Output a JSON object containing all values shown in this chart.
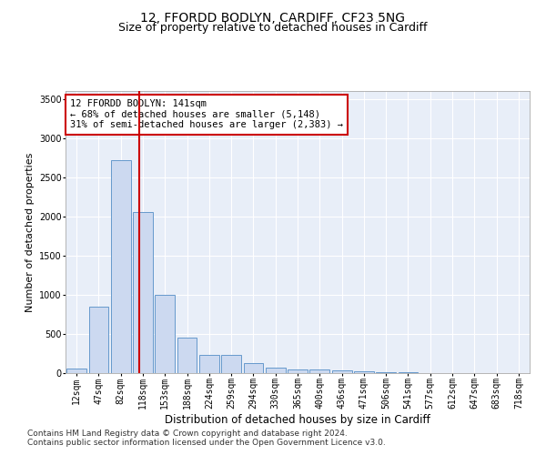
{
  "title_line1": "12, FFORDD BODLYN, CARDIFF, CF23 5NG",
  "title_line2": "Size of property relative to detached houses in Cardiff",
  "xlabel": "Distribution of detached houses by size in Cardiff",
  "ylabel": "Number of detached properties",
  "bar_categories": [
    "12sqm",
    "47sqm",
    "82sqm",
    "118sqm",
    "153sqm",
    "188sqm",
    "224sqm",
    "259sqm",
    "294sqm",
    "330sqm",
    "365sqm",
    "400sqm",
    "436sqm",
    "471sqm",
    "506sqm",
    "541sqm",
    "577sqm",
    "612sqm",
    "647sqm",
    "683sqm",
    "718sqm"
  ],
  "bar_values": [
    55,
    850,
    2720,
    2060,
    1000,
    450,
    230,
    230,
    130,
    65,
    50,
    50,
    30,
    20,
    15,
    8,
    5,
    4,
    3,
    2,
    2
  ],
  "bar_color": "#ccd9f0",
  "bar_edge_color": "#6699cc",
  "ylim": [
    0,
    3600
  ],
  "yticks": [
    0,
    500,
    1000,
    1500,
    2000,
    2500,
    3000,
    3500
  ],
  "property_line_x": 2.85,
  "annotation_text": "12 FFORDD BODLYN: 141sqm\n← 68% of detached houses are smaller (5,148)\n31% of semi-detached houses are larger (2,383) →",
  "annotation_box_color": "#ffffff",
  "annotation_box_edge": "#cc0000",
  "vline_color": "#cc0000",
  "footnote1": "Contains HM Land Registry data © Crown copyright and database right 2024.",
  "footnote2": "Contains public sector information licensed under the Open Government Licence v3.0.",
  "plot_bg_color": "#e8eef8",
  "title1_fontsize": 10,
  "title2_fontsize": 9,
  "xlabel_fontsize": 8.5,
  "ylabel_fontsize": 8,
  "tick_fontsize": 7,
  "annotation_fontsize": 7.5,
  "footnote_fontsize": 6.5
}
